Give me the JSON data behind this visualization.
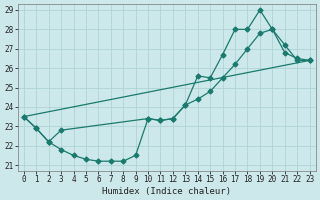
{
  "xlabel": "Humidex (Indice chaleur)",
  "bg_color": "#cde8ea",
  "grid_color": "#afd4d6",
  "line_color": "#1a7a6e",
  "xlim": [
    -0.5,
    23.5
  ],
  "ylim": [
    20.7,
    29.3
  ],
  "yticks": [
    21,
    22,
    23,
    24,
    25,
    26,
    27,
    28,
    29
  ],
  "xticks": [
    0,
    1,
    2,
    3,
    4,
    5,
    6,
    7,
    8,
    9,
    10,
    11,
    12,
    13,
    14,
    15,
    16,
    17,
    18,
    19,
    20,
    21,
    22,
    23
  ],
  "line1_x": [
    0,
    1,
    2,
    3,
    4,
    5,
    6,
    7,
    8,
    9,
    10,
    11,
    12,
    13,
    14,
    15,
    16,
    17,
    18,
    19,
    20,
    21,
    22,
    23
  ],
  "line1_y": [
    23.5,
    22.9,
    22.2,
    21.8,
    21.5,
    21.3,
    21.2,
    21.2,
    21.2,
    21.5,
    23.4,
    23.3,
    23.4,
    24.1,
    25.6,
    25.5,
    26.7,
    28.0,
    28.0,
    29.0,
    28.0,
    27.2,
    26.4,
    26.4
  ],
  "line2_x": [
    0,
    1,
    2,
    3,
    10,
    11,
    12,
    13,
    14,
    15,
    16,
    17,
    18,
    19,
    20,
    21,
    22,
    23
  ],
  "line2_y": [
    23.5,
    22.9,
    22.2,
    22.8,
    23.4,
    23.3,
    23.4,
    24.1,
    24.4,
    24.8,
    25.5,
    26.2,
    27.0,
    27.8,
    28.0,
    26.8,
    26.5,
    26.4
  ],
  "line3_x": [
    0,
    23
  ],
  "line3_y": [
    23.5,
    26.4
  ]
}
